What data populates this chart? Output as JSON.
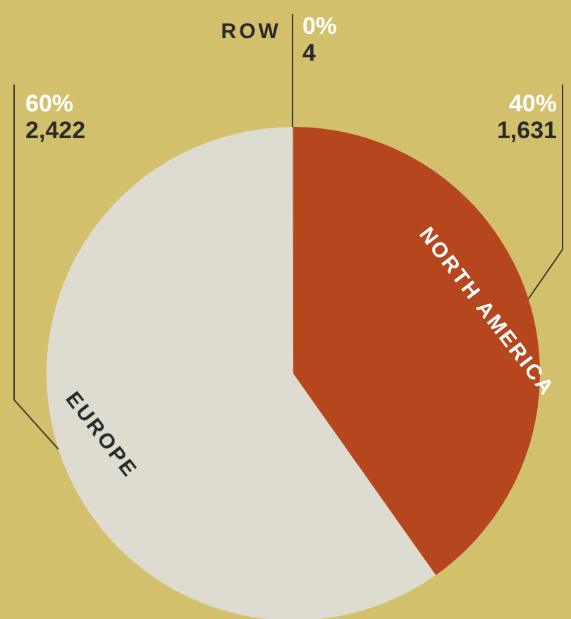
{
  "chart_data": {
    "type": "pie",
    "categories": [
      "NORTH AMERICA",
      "EUROPE",
      "ROW"
    ],
    "values": [
      1631,
      2422,
      4
    ],
    "colors": [
      "#b5461e",
      "#dedbd0",
      "#c9c6b8"
    ],
    "value_labels": [
      "40%\n1,631",
      "60%\n2,422",
      "0%\n4"
    ]
  }
}
